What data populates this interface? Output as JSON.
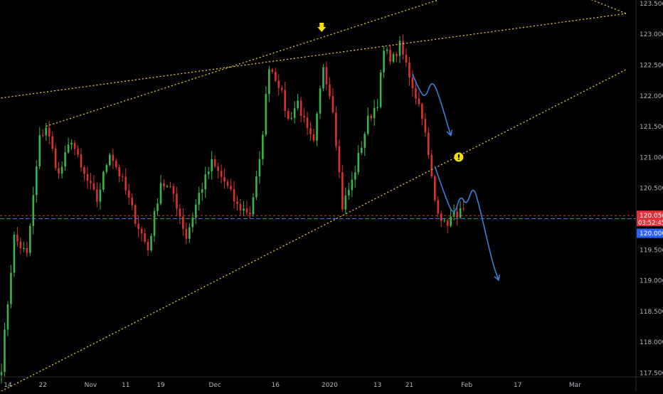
{
  "colors": {
    "background": "#000000",
    "axis_text": "#b2b5be",
    "grid": "#141414",
    "bull": "#26a69a",
    "bull_body": "#3bb54a",
    "bear": "#d9342b",
    "trendline": "#e6d22a",
    "projection": "#3d7fd9",
    "price_line": "#e0323c",
    "target_line": "#3d7fd9",
    "badge_price": "#e0323c",
    "badge_target": "#2962ff",
    "marker": "#f5e000"
  },
  "chart_data": {
    "type": "candlestick",
    "instrument_note": "",
    "y_axis": {
      "range": [
        117.2,
        123.55
      ],
      "ticks": [
        "117.500",
        "118.000",
        "118.500",
        "119.000",
        "119.500",
        "120.000",
        "120.500",
        "121.000",
        "121.500",
        "122.000",
        "122.500",
        "123.000",
        "123.500"
      ]
    },
    "x_axis": {
      "ticks": [
        "14",
        "22",
        "Nov",
        "11",
        "19",
        "Dec",
        "16",
        "2020",
        "13",
        "21",
        "Feb",
        "17",
        "Mar"
      ],
      "tick_bars": [
        2,
        13,
        28,
        39,
        50,
        67,
        86,
        103,
        118,
        128,
        146,
        162,
        180
      ]
    },
    "price_line": {
      "value": 120.05,
      "label": "120.050",
      "countdown": "03:52:45"
    },
    "target_line": {
      "value": 120.0,
      "label": "120.000"
    },
    "anchors": [
      [
        0,
        117.6
      ],
      [
        4,
        119.7
      ],
      [
        8,
        119.4
      ],
      [
        12,
        121.3
      ],
      [
        14,
        121.5
      ],
      [
        18,
        120.7
      ],
      [
        22,
        121.3
      ],
      [
        25,
        120.8
      ],
      [
        30,
        120.3
      ],
      [
        34,
        121.1
      ],
      [
        38,
        120.6
      ],
      [
        42,
        120.0
      ],
      [
        46,
        119.5
      ],
      [
        50,
        120.6
      ],
      [
        54,
        120.4
      ],
      [
        58,
        119.7
      ],
      [
        62,
        120.4
      ],
      [
        66,
        120.9
      ],
      [
        70,
        120.6
      ],
      [
        74,
        120.2
      ],
      [
        78,
        120.1
      ],
      [
        81,
        120.9
      ],
      [
        84,
        122.5
      ],
      [
        87,
        122.2
      ],
      [
        90,
        121.6
      ],
      [
        93,
        121.9
      ],
      [
        96,
        121.4
      ],
      [
        98,
        121.2
      ],
      [
        101,
        122.5
      ],
      [
        104,
        121.8
      ],
      [
        107,
        120.2
      ],
      [
        110,
        120.6
      ],
      [
        112,
        121.0
      ],
      [
        115,
        121.6
      ],
      [
        118,
        121.9
      ],
      [
        120,
        122.7
      ],
      [
        123,
        122.6
      ],
      [
        125,
        122.8
      ],
      [
        127,
        122.5
      ],
      [
        130,
        122.0
      ],
      [
        132,
        121.7
      ],
      [
        134,
        121.0
      ],
      [
        136,
        120.3
      ],
      [
        139,
        119.9
      ],
      [
        143,
        120.1
      ],
      [
        145,
        120.1
      ]
    ],
    "trendlines": [
      {
        "style": "dotted",
        "points": [
          [
            -20,
            121.82
          ],
          [
            196,
            123.33
          ]
        ]
      },
      {
        "style": "dotted",
        "points": [
          [
            14,
            121.5
          ],
          [
            140,
            123.6
          ]
        ]
      },
      {
        "style": "dotted",
        "points": [
          [
            0,
            117.2
          ],
          [
            196,
            122.42
          ]
        ]
      },
      {
        "style": "dotted",
        "points": [
          [
            182,
            123.62
          ],
          [
            196,
            123.33
          ]
        ]
      }
    ],
    "projections": [
      {
        "points": [
          [
            129,
            122.35
          ],
          [
            131,
            122.1
          ],
          [
            133,
            121.95
          ],
          [
            135,
            122.25
          ],
          [
            137,
            122.05
          ],
          [
            141,
            121.35
          ]
        ],
        "arrow": true
      },
      {
        "points": [
          [
            136,
            120.85
          ],
          [
            139,
            120.4
          ],
          [
            142,
            120.02
          ],
          [
            144,
            120.4
          ],
          [
            146,
            120.2
          ],
          [
            148,
            120.55
          ],
          [
            150,
            120.2
          ],
          [
            154,
            119.3
          ],
          [
            156,
            119.0
          ]
        ],
        "arrow": true
      }
    ],
    "markers": [
      {
        "shape": "arrow-down",
        "x": 100.5,
        "y": 123.1
      },
      {
        "shape": "exclamation-circle",
        "x": 143.5,
        "y": 121.0
      }
    ]
  }
}
